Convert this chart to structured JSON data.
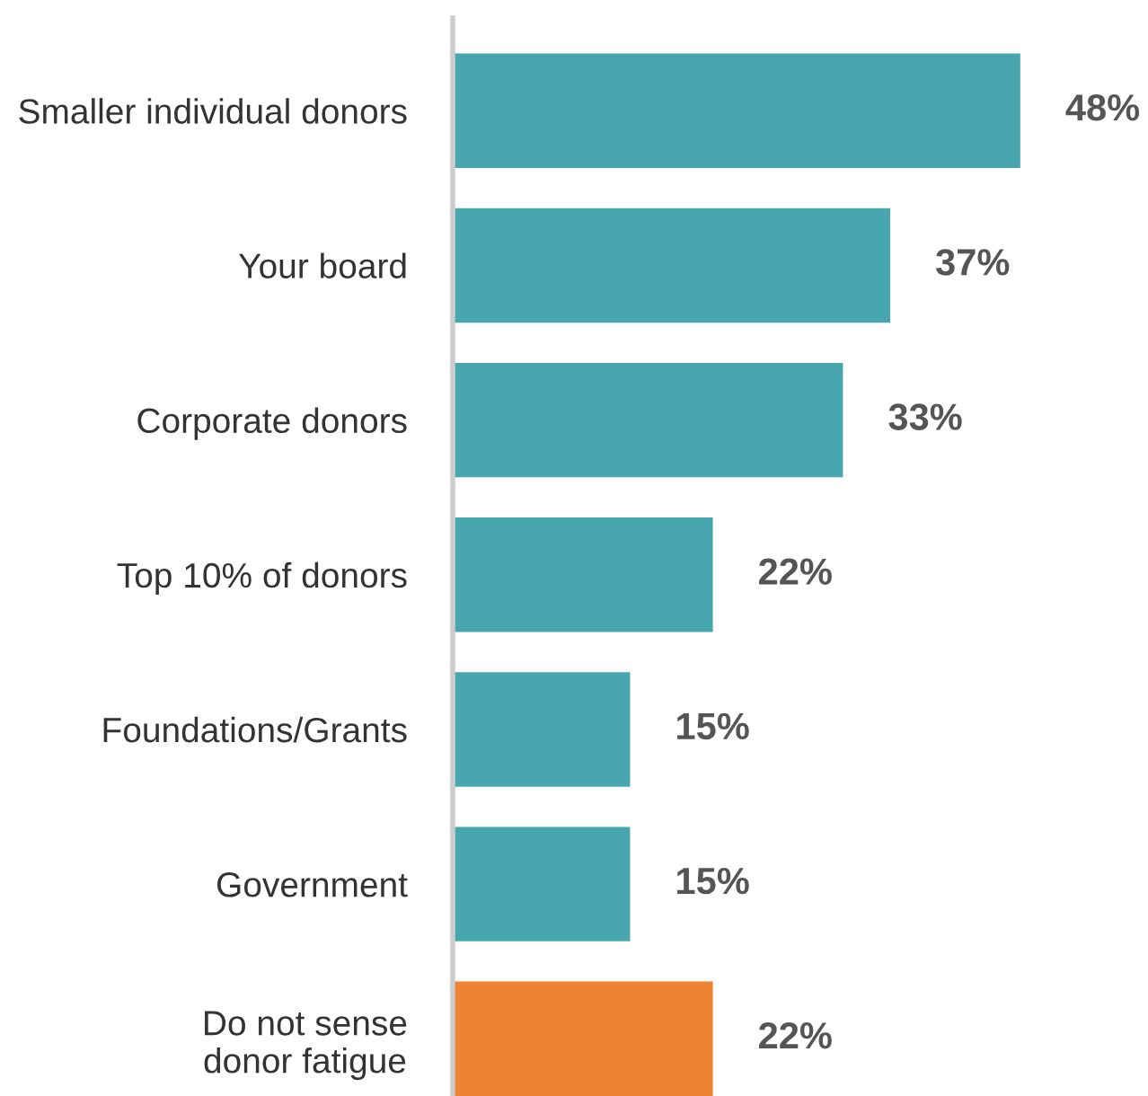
{
  "chart_data": {
    "type": "bar",
    "orientation": "horizontal",
    "categories": [
      "Smaller individual donors",
      "Your board",
      "Corporate donors",
      "Top 10% of donors",
      "Foundations/Grants",
      "Government",
      "Do not sense\ndonor fatigue"
    ],
    "values": [
      48,
      37,
      33,
      22,
      15,
      15,
      22
    ],
    "colors": [
      "#48a6ae",
      "#48a6ae",
      "#48a6ae",
      "#48a6ae",
      "#48a6ae",
      "#48a6ae",
      "#ee8233"
    ],
    "value_labels": [
      "48%",
      "37%",
      "33%",
      "22%",
      "15%",
      "15%",
      "22%"
    ],
    "grid": false,
    "legend": false
  }
}
